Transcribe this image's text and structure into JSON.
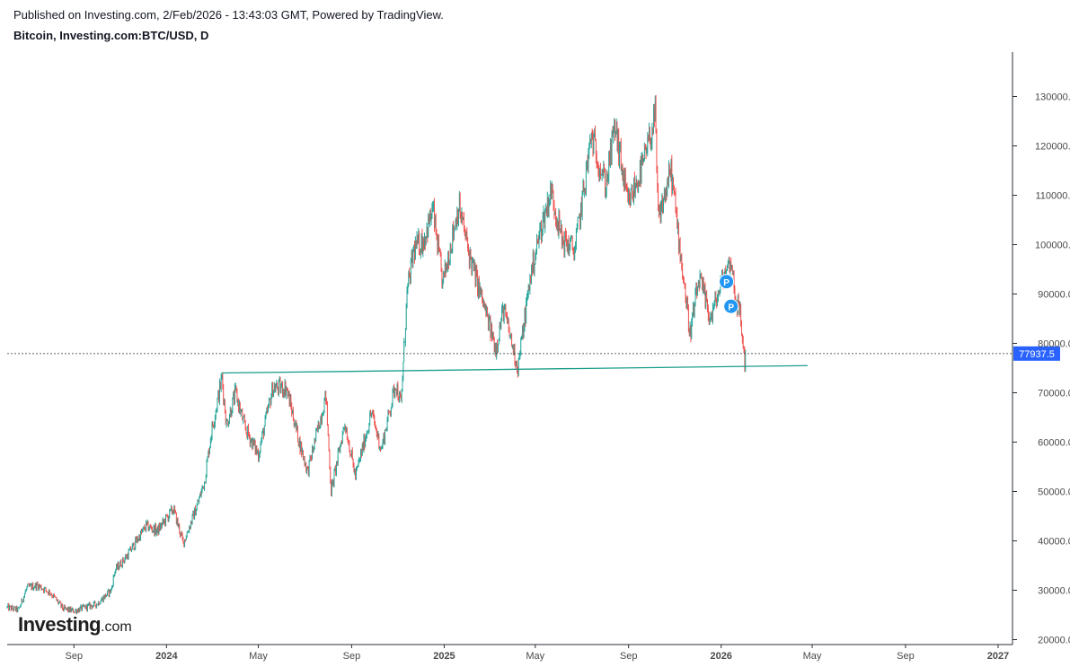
{
  "header": {
    "published_line": "Published on Investing.com, 2/Feb/2026 - 13:43:03 GMT, Powered by TradingView.",
    "symbol_line": "Bitcoin, Investing.com:BTC/USD, D"
  },
  "logo": {
    "main": "Investing",
    "suffix": ".com"
  },
  "colors": {
    "up": "#26a69a",
    "down": "#ef5350",
    "trendline": "#1b9e8b",
    "price_tag": "#2962ff",
    "marker": "#2196f3",
    "axis_text": "#4a4a4a"
  },
  "chart_data": {
    "type": "candlestick",
    "title": "Bitcoin, Investing.com:BTC/USD, D",
    "y_axis": {
      "position": "right",
      "ticks": [
        "20000.0",
        "30000.0",
        "40000.0",
        "50000.0",
        "60000.0",
        "70000.0",
        "80000.0",
        "90000.0",
        "100000.0",
        "110000.0",
        "120000.0",
        "130000.0"
      ],
      "range": [
        19000,
        139000
      ]
    },
    "x_axis": {
      "ticks": [
        "Sep",
        "2024",
        "May",
        "Sep",
        "2025",
        "May",
        "Sep",
        "2026",
        "May",
        "Sep",
        "2027"
      ],
      "tick_dates": [
        "2023-09-01",
        "2024-01-01",
        "2024-05-01",
        "2024-09-01",
        "2025-01-01",
        "2025-05-01",
        "2025-09-01",
        "2026-01-01",
        "2026-05-01",
        "2026-09-01",
        "2027-01-01"
      ],
      "range": [
        "2023-06-05",
        "2027-01-20"
      ]
    },
    "last_price": {
      "value": 77937.5,
      "label": "77937.5"
    },
    "trendline": {
      "start": [
        "2024-03-14",
        74000
      ],
      "end": [
        "2026-04-25",
        75500
      ]
    },
    "markers": [
      {
        "date": "2026-01-08",
        "value": 92500,
        "label": "P"
      },
      {
        "date": "2026-01-14",
        "value": 87500,
        "label": "P"
      }
    ],
    "price_path": [
      [
        "2023-06-05",
        26500
      ],
      [
        "2023-06-20",
        26000
      ],
      [
        "2023-07-01",
        30500
      ],
      [
        "2023-07-15",
        31000
      ],
      [
        "2023-08-01",
        29500
      ],
      [
        "2023-08-18",
        26200
      ],
      [
        "2023-09-01",
        25800
      ],
      [
        "2023-09-15",
        26500
      ],
      [
        "2023-10-01",
        27200
      ],
      [
        "2023-10-20",
        30000
      ],
      [
        "2023-10-25",
        34000
      ],
      [
        "2023-11-10",
        37000
      ],
      [
        "2023-12-05",
        43000
      ],
      [
        "2023-12-20",
        42000
      ],
      [
        "2024-01-10",
        46500
      ],
      [
        "2024-01-23",
        39500
      ],
      [
        "2024-02-10",
        47000
      ],
      [
        "2024-02-20",
        52000
      ],
      [
        "2024-02-29",
        62000
      ],
      [
        "2024-03-14",
        73000
      ],
      [
        "2024-03-20",
        63500
      ],
      [
        "2024-04-01",
        70000
      ],
      [
        "2024-04-13",
        63000
      ],
      [
        "2024-05-01",
        57500
      ],
      [
        "2024-05-20",
        71000
      ],
      [
        "2024-06-07",
        71000
      ],
      [
        "2024-06-24",
        60000
      ],
      [
        "2024-07-05",
        54000
      ],
      [
        "2024-07-29",
        69500
      ],
      [
        "2024-08-05",
        50000
      ],
      [
        "2024-08-23",
        64000
      ],
      [
        "2024-09-06",
        53000
      ],
      [
        "2024-09-27",
        66000
      ],
      [
        "2024-10-10",
        58500
      ],
      [
        "2024-10-29",
        72000
      ],
      [
        "2024-11-05",
        67500
      ],
      [
        "2024-11-13",
        90000
      ],
      [
        "2024-11-22",
        99000
      ],
      [
        "2024-12-05",
        101000
      ],
      [
        "2024-12-17",
        107000
      ],
      [
        "2024-12-30",
        92000
      ],
      [
        "2025-01-20",
        108000
      ],
      [
        "2025-02-03",
        98000
      ],
      [
        "2025-02-25",
        86000
      ],
      [
        "2025-03-10",
        79000
      ],
      [
        "2025-03-20",
        87000
      ],
      [
        "2025-04-08",
        75000
      ],
      [
        "2025-04-25",
        94000
      ],
      [
        "2025-05-08",
        103000
      ],
      [
        "2025-05-22",
        111000
      ],
      [
        "2025-06-05",
        101000
      ],
      [
        "2025-06-22",
        99000
      ],
      [
        "2025-07-03",
        110000
      ],
      [
        "2025-07-14",
        122000
      ],
      [
        "2025-08-02",
        112000
      ],
      [
        "2025-08-14",
        124000
      ],
      [
        "2025-08-31",
        108000
      ],
      [
        "2025-09-20",
        116000
      ],
      [
        "2025-10-06",
        126000
      ],
      [
        "2025-10-10",
        105000
      ],
      [
        "2025-10-27",
        115000
      ],
      [
        "2025-11-07",
        100000
      ],
      [
        "2025-11-21",
        82000
      ],
      [
        "2025-12-03",
        93000
      ],
      [
        "2025-12-18",
        85000
      ],
      [
        "2026-01-05",
        94000
      ],
      [
        "2026-01-14",
        97000
      ],
      [
        "2026-01-20",
        89000
      ],
      [
        "2026-01-26",
        86000
      ],
      [
        "2026-02-01",
        76000
      ],
      [
        "2026-02-02",
        77937.5
      ]
    ]
  }
}
